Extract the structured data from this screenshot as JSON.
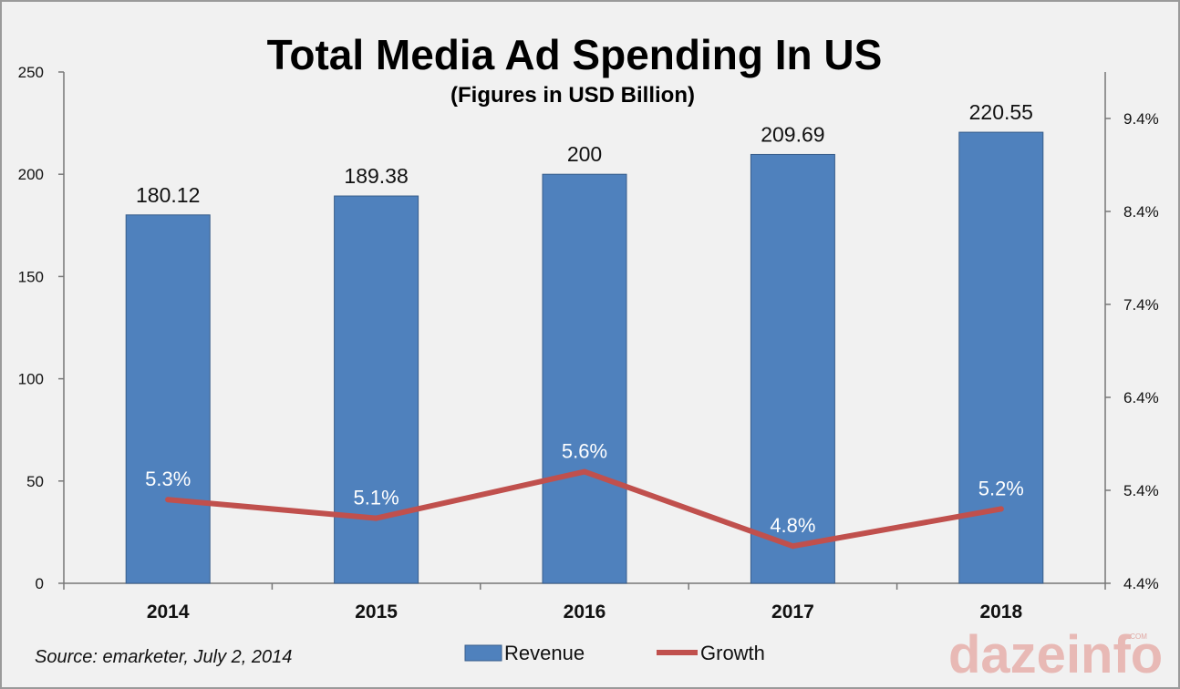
{
  "chart_data": {
    "type": "bar",
    "title": "Total Media Ad Spending In US",
    "subtitle": "(Figures in USD Billion)",
    "categories": [
      "2014",
      "2015",
      "2016",
      "2017",
      "2018"
    ],
    "series": [
      {
        "name": "Revenue",
        "type": "bar",
        "axis": "left",
        "values": [
          180.12,
          189.38,
          200,
          209.69,
          220.55
        ],
        "labels": [
          "180.12",
          "189.38",
          "200",
          "209.69",
          "220.55"
        ],
        "color": "#4f81bd"
      },
      {
        "name": "Growth",
        "type": "line",
        "axis": "right",
        "values": [
          5.3,
          5.1,
          5.6,
          4.8,
          5.2
        ],
        "labels": [
          "5.3%",
          "5.1%",
          "5.6%",
          "4.8%",
          "5.2%"
        ],
        "color": "#c0504d"
      }
    ],
    "y_left": {
      "ylim": [
        0,
        250
      ],
      "ticks": [
        "0",
        "50",
        "100",
        "150",
        "200",
        "250"
      ]
    },
    "y_right": {
      "ylim": [
        4.4,
        9.9
      ],
      "ticks": [
        "4.4%",
        "5.4%",
        "6.4%",
        "7.4%",
        "8.4%",
        "9.4%"
      ],
      "tick_values": [
        4.4,
        5.4,
        6.4,
        7.4,
        8.4,
        9.4
      ]
    },
    "grid": false,
    "legend_position": "bottom"
  },
  "source": "Source: emarketer, July 2, 2014",
  "watermark": "dazeinfo"
}
